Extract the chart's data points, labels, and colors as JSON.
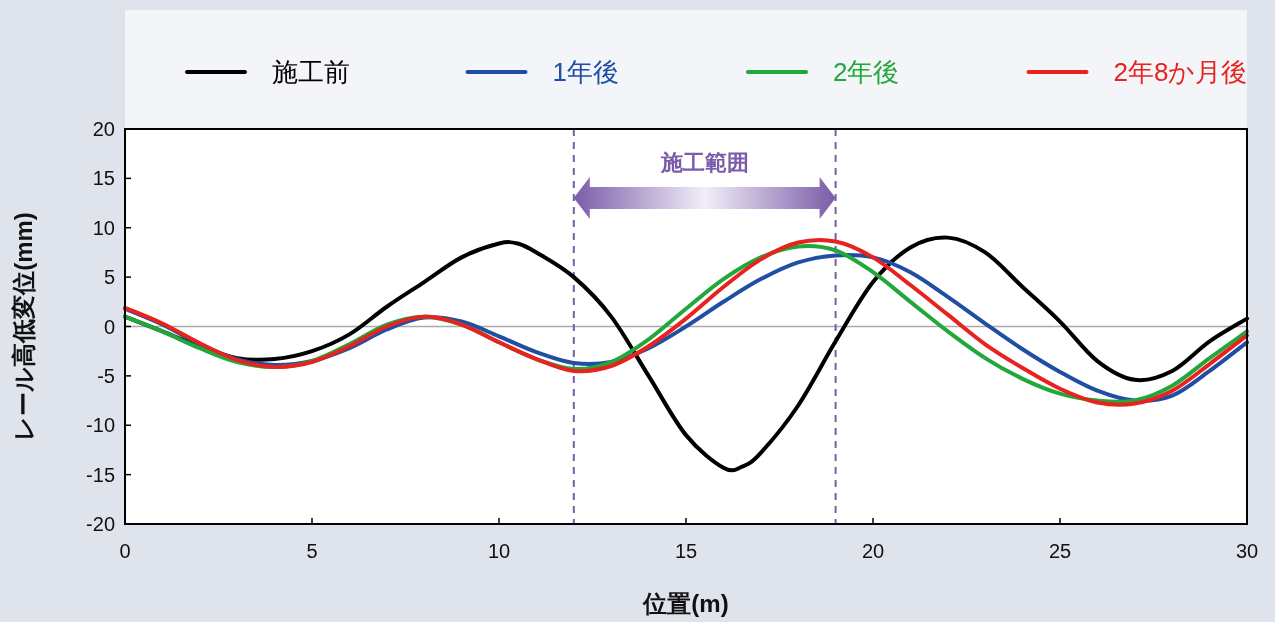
{
  "chart_data": {
    "type": "line",
    "xlabel": "位置(m)",
    "ylabel": "レール高低変位(mm)",
    "xlim": [
      0,
      30
    ],
    "xticks": [
      0,
      5,
      10,
      15,
      20,
      25,
      30
    ],
    "ylim": [
      -20,
      20
    ],
    "yticks": [
      -20,
      -15,
      -10,
      -5,
      0,
      5,
      10,
      15,
      20
    ],
    "legend": "top",
    "marker": "none",
    "line_style": "solid",
    "x": [
      0,
      1,
      2,
      3,
      4,
      5,
      6,
      7,
      8,
      9,
      10,
      11,
      12,
      13,
      14,
      15,
      16,
      17,
      18,
      19,
      20,
      21,
      22,
      23,
      24,
      25,
      26,
      27,
      28,
      29,
      30
    ],
    "series": [
      {
        "name": "施工前",
        "color": "#000000",
        "x": [
          0,
          1,
          2,
          3,
          4,
          5,
          6,
          7,
          8,
          9,
          10,
          10.5,
          11,
          12,
          13,
          14,
          15,
          16,
          16.5,
          17,
          18,
          19,
          20,
          21,
          22,
          23,
          24,
          25,
          26,
          27,
          28,
          29,
          30
        ],
        "values": [
          1,
          -0.5,
          -2,
          -3.2,
          -3.3,
          -2.5,
          -0.8,
          2,
          4.5,
          7,
          8.4,
          8.4,
          7.5,
          5,
          1,
          -5,
          -11,
          -14.3,
          -14.2,
          -12.8,
          -8,
          -1.5,
          4.5,
          8,
          9,
          7.5,
          4,
          0.5,
          -3.5,
          -5.4,
          -4.5,
          -1.5,
          0.8
        ]
      },
      {
        "name": "1年後",
        "color": "#1f4ea3",
        "values": [
          1.8,
          0.2,
          -1.8,
          -3.3,
          -3.9,
          -3.5,
          -2.2,
          -0.3,
          0.9,
          0.5,
          -1,
          -2.6,
          -3.7,
          -3.6,
          -2.2,
          0,
          2.5,
          4.8,
          6.5,
          7.2,
          7,
          5.5,
          3,
          0.3,
          -2.3,
          -4.6,
          -6.5,
          -7.5,
          -7,
          -4.5,
          -1.6
        ]
      },
      {
        "name": "2年後",
        "color": "#22a83a",
        "values": [
          1,
          -0.5,
          -2.2,
          -3.6,
          -4.1,
          -3.5,
          -1.8,
          0.2,
          1,
          0.2,
          -1.6,
          -3.3,
          -4.3,
          -3.6,
          -1.3,
          1.8,
          4.8,
          7,
          8.1,
          7.7,
          5.5,
          2.5,
          -0.5,
          -3.2,
          -5.3,
          -6.8,
          -7.5,
          -7.5,
          -6,
          -3.2,
          -0.5
        ]
      },
      {
        "name": "2年8か月後",
        "color": "#e8221e",
        "values": [
          1.9,
          0.3,
          -1.7,
          -3.4,
          -4.1,
          -3.6,
          -2,
          0,
          1,
          0.2,
          -1.6,
          -3.3,
          -4.5,
          -4,
          -2,
          0.8,
          4,
          6.8,
          8.5,
          8.6,
          7,
          4.2,
          1.2,
          -1.8,
          -4.2,
          -6.3,
          -7.7,
          -7.8,
          -6.5,
          -3.8,
          -0.9
        ]
      }
    ],
    "ref_lines": [
      {
        "axis": "y",
        "value": 0,
        "color": "#aaaaaa",
        "line_style": "solid"
      },
      {
        "axis": "x",
        "value": 12,
        "color": "#7a5ca8",
        "line_style": "dashed"
      },
      {
        "axis": "x",
        "value": 19,
        "color": "#7a5ca8",
        "line_style": "dashed"
      }
    ],
    "annotations": [
      "施工範囲"
    ]
  }
}
